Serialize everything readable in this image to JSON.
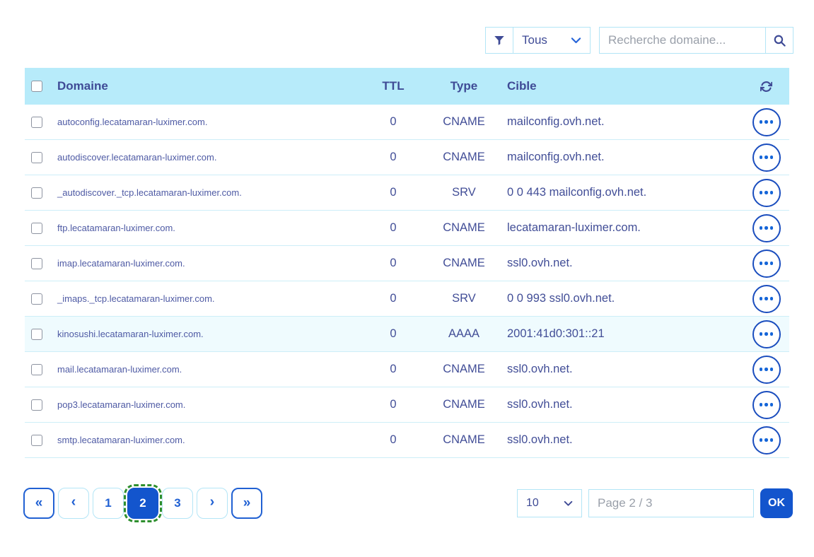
{
  "toolbar": {
    "filter_select_value": "Tous",
    "search_placeholder": "Recherche domaine..."
  },
  "table": {
    "headers": {
      "domain": "Domaine",
      "ttl": "TTL",
      "type": "Type",
      "target": "Cible"
    },
    "rows": [
      {
        "domain": "autoconfig.lecatamaran-luximer.com.",
        "ttl": "0",
        "type": "CNAME",
        "target": "mailconfig.ovh.net.",
        "highlighted": false
      },
      {
        "domain": "autodiscover.lecatamaran-luximer.com.",
        "ttl": "0",
        "type": "CNAME",
        "target": "mailconfig.ovh.net.",
        "highlighted": false
      },
      {
        "domain": "_autodiscover._tcp.lecatamaran-luximer.com.",
        "ttl": "0",
        "type": "SRV",
        "target": "0 0 443 mailconfig.ovh.net.",
        "highlighted": false
      },
      {
        "domain": "ftp.lecatamaran-luximer.com.",
        "ttl": "0",
        "type": "CNAME",
        "target": "lecatamaran-luximer.com.",
        "highlighted": false
      },
      {
        "domain": "imap.lecatamaran-luximer.com.",
        "ttl": "0",
        "type": "CNAME",
        "target": "ssl0.ovh.net.",
        "highlighted": false
      },
      {
        "domain": "_imaps._tcp.lecatamaran-luximer.com.",
        "ttl": "0",
        "type": "SRV",
        "target": "0 0 993 ssl0.ovh.net.",
        "highlighted": false
      },
      {
        "domain": "kinosushi.lecatamaran-luximer.com.",
        "ttl": "0",
        "type": "AAAA",
        "target": "2001:41d0:301::21",
        "highlighted": true
      },
      {
        "domain": "mail.lecatamaran-luximer.com.",
        "ttl": "0",
        "type": "CNAME",
        "target": "ssl0.ovh.net.",
        "highlighted": false
      },
      {
        "domain": "pop3.lecatamaran-luximer.com.",
        "ttl": "0",
        "type": "CNAME",
        "target": "ssl0.ovh.net.",
        "highlighted": false
      },
      {
        "domain": "smtp.lecatamaran-luximer.com.",
        "ttl": "0",
        "type": "CNAME",
        "target": "ssl0.ovh.net.",
        "highlighted": false
      }
    ]
  },
  "pagination": {
    "first_label": "«",
    "prev_label": "‹",
    "next_label": "›",
    "last_label": "»",
    "pages": [
      "1",
      "2",
      "3"
    ],
    "active_page": "2"
  },
  "footer": {
    "page_size": "10",
    "page_input_placeholder": "Page 2 / 3",
    "ok_label": "OK"
  },
  "icons": {
    "filter": "funnel-icon",
    "select_caret": "chevron-down-icon",
    "search": "magnifier-icon",
    "refresh": "refresh-icon",
    "row_actions": "ellipsis-icon"
  },
  "colors": {
    "header_bg": "#b7ebfa",
    "header_text": "#3f4b96",
    "row_separator": "#cdeef8",
    "highlighted_row_bg": "#effbfe",
    "light_border": "#b3e5f6",
    "accent_blue": "#2161d3",
    "active_page_bg": "#1355cd",
    "focus_outline_green": "#2e8f2e",
    "placeholder_gray": "#9aa0aa"
  }
}
